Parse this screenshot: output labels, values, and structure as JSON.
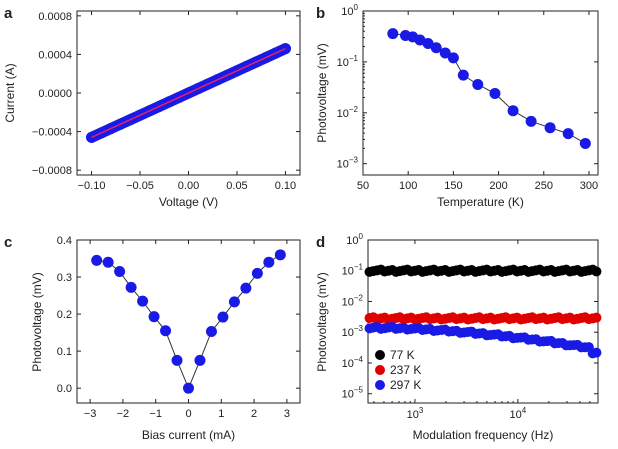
{
  "chart_data": [
    {
      "panel": "a",
      "type": "scatter",
      "xlabel": "Voltage (V)",
      "ylabel": "Current (A)",
      "xlim": [
        -0.115,
        0.115
      ],
      "ylim": [
        -0.00085,
        0.00085
      ],
      "xticks": [
        -0.1,
        -0.05,
        0.0,
        0.05,
        0.1
      ],
      "xtick_labels": [
        "−0.10",
        "−0.05",
        "0.00",
        "0.05",
        "0.10"
      ],
      "yticks": [
        -0.0008,
        -0.0004,
        0.0,
        0.0004,
        0.0008
      ],
      "ytick_labels": [
        "−0.0008",
        "−0.0004",
        "0.0000",
        "0.0004",
        "0.0008"
      ],
      "grid": false,
      "marker_color": "#1a1ae6",
      "fit_color": "#e8206a",
      "x": [
        -0.1,
        -0.09,
        -0.08,
        -0.07,
        -0.06,
        -0.05,
        -0.04,
        -0.03,
        -0.02,
        -0.01,
        0.0,
        0.01,
        0.02,
        0.03,
        0.04,
        0.05,
        0.06,
        0.07,
        0.08,
        0.09,
        0.1
      ],
      "y": [
        -0.00046,
        -0.000414,
        -0.000368,
        -0.000322,
        -0.000276,
        -0.00023,
        -0.000184,
        -0.000138,
        -9.2e-05,
        -4.6e-05,
        0.0,
        4.6e-05,
        9.2e-05,
        0.000138,
        0.000184,
        0.00023,
        0.000276,
        0.000322,
        0.000368,
        0.000414,
        0.00046
      ]
    },
    {
      "panel": "b",
      "type": "scatter",
      "xlabel": "Temperature (K)",
      "ylabel": "Photovoltage (mV)",
      "yscale": "log",
      "xlim": [
        50,
        310
      ],
      "ylim": [
        0.0006,
        1.0
      ],
      "xticks": [
        50,
        100,
        150,
        200,
        250,
        300
      ],
      "xtick_labels": [
        "50",
        "100",
        "150",
        "200",
        "250",
        "300"
      ],
      "yticks": [
        0.001,
        0.01,
        0.1,
        1
      ],
      "ytick_exponents": [
        "−3",
        "−2",
        "−1",
        "0"
      ],
      "grid": false,
      "marker_color": "#1a1ae6",
      "x": [
        83,
        97,
        105,
        113,
        122,
        131,
        141,
        150,
        161,
        177,
        196,
        216,
        236,
        257,
        277,
        296
      ],
      "y": [
        0.36,
        0.33,
        0.31,
        0.27,
        0.23,
        0.19,
        0.15,
        0.12,
        0.055,
        0.036,
        0.024,
        0.011,
        0.0068,
        0.0051,
        0.0039,
        0.0025
      ]
    },
    {
      "panel": "c",
      "type": "scatter",
      "xlabel": "Bias current (mA)",
      "ylabel": "Photovoltage (mV)",
      "xlim": [
        -3.4,
        3.4
      ],
      "ylim": [
        -0.04,
        0.4
      ],
      "xticks": [
        -3,
        -2,
        -1,
        0,
        1,
        2,
        3
      ],
      "xtick_labels": [
        "−3",
        "−2",
        "−1",
        "0",
        "1",
        "2",
        "3"
      ],
      "yticks": [
        0.0,
        0.1,
        0.2,
        0.3,
        0.4
      ],
      "ytick_labels": [
        "0.0",
        "0.1",
        "0.2",
        "0.3",
        "0.4"
      ],
      "grid": false,
      "marker_color": "#1a1ae6",
      "x": [
        -2.8,
        -2.45,
        -2.1,
        -1.75,
        -1.4,
        -1.05,
        -0.7,
        -0.35,
        0.0,
        0.35,
        0.7,
        1.05,
        1.4,
        1.75,
        2.1,
        2.45,
        2.8
      ],
      "y": [
        0.345,
        0.34,
        0.315,
        0.272,
        0.235,
        0.193,
        0.155,
        0.075,
        0.0,
        0.075,
        0.153,
        0.192,
        0.233,
        0.27,
        0.31,
        0.34,
        0.36
      ]
    },
    {
      "panel": "d",
      "type": "scatter",
      "xlabel": "Modulation frequency (Hz)",
      "ylabel": "Photovoltage (mV)",
      "xscale": "log",
      "yscale": "log",
      "xlim": [
        350,
        60000
      ],
      "ylim": [
        5e-06,
        1.0
      ],
      "xticks": [
        1000,
        10000
      ],
      "xtick_exponents": [
        "3",
        "4"
      ],
      "yticks": [
        1e-05,
        0.0001,
        0.001,
        0.01,
        0.1,
        1
      ],
      "ytick_exponents": [
        "−5",
        "−4",
        "−3",
        "−2",
        "−1",
        "0"
      ],
      "grid": false,
      "legend_position": "bottom-left",
      "series": [
        {
          "name": "77 K",
          "color": "#000000",
          "log10_start": -1.0,
          "log10_end": -1.0
        },
        {
          "name": "237 K",
          "color": "#e00000",
          "log10_start": -2.55,
          "log10_end": -2.55
        },
        {
          "name": "297 K",
          "color": "#1a1ae6",
          "log10_start": -2.85,
          "log10_end": -3.55
        }
      ]
    }
  ]
}
